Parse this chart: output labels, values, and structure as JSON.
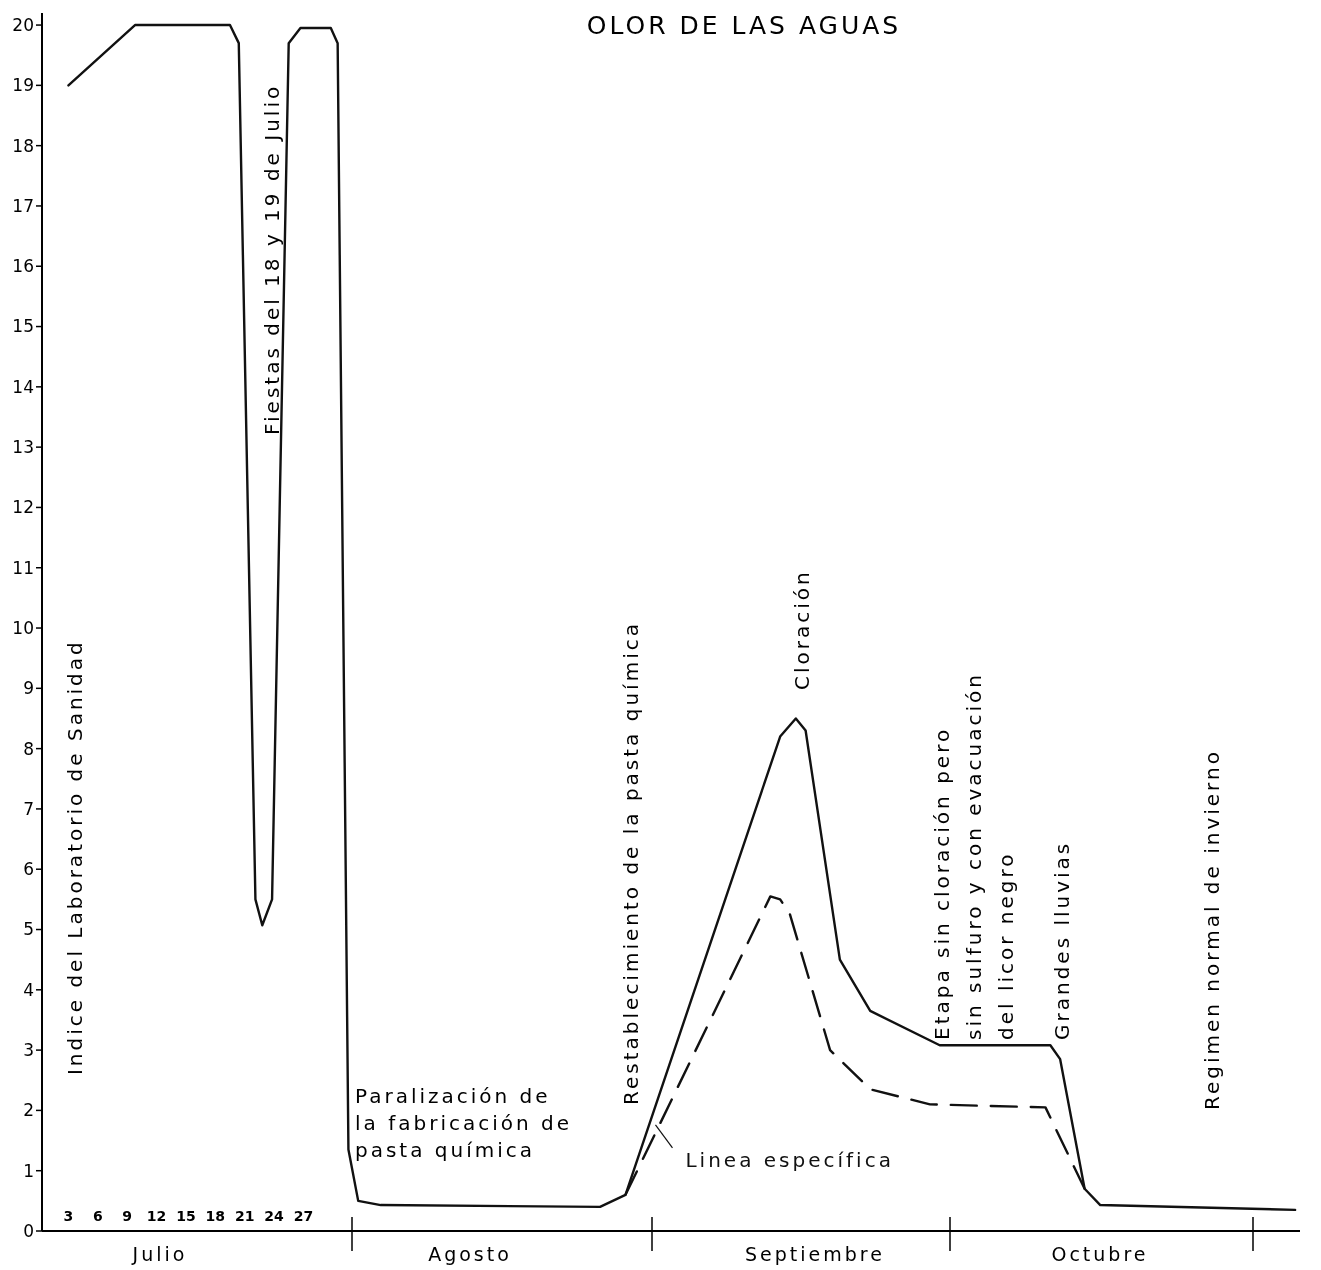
{
  "chart_data": {
    "type": "line",
    "title": "OLOR DE LAS AGUAS",
    "ylabel": "Indice del Laboratorio de Sanidad",
    "xlim": [
      0.3,
      128.8
    ],
    "ylim": [
      0,
      20.2
    ],
    "xticks": [
      3,
      6,
      9,
      12,
      15,
      18,
      21,
      24,
      27
    ],
    "yticks": [
      0,
      1,
      2,
      3,
      4,
      5,
      6,
      7,
      8,
      9,
      10,
      11,
      12,
      13,
      14,
      15,
      16,
      17,
      18,
      19,
      20
    ],
    "series": [
      {
        "color": "#111111",
        "line_style": "solid",
        "x": [
          3,
          9.8,
          19.5,
          20.4,
          22.1,
          22.8,
          23.8,
          25.5,
          26.7,
          29.8,
          30.5,
          31.6,
          32.6,
          34.9,
          57.3,
          59.9,
          75.7,
          77.3,
          78.3,
          81.8,
          84.9,
          92,
          103.3,
          104.3,
          106.8,
          108.4,
          128.3
        ],
        "values": [
          19,
          20,
          20,
          19.7,
          5.5,
          5.07,
          5.5,
          19.7,
          19.95,
          19.95,
          19.7,
          1.35,
          0.5,
          0.43,
          0.4,
          0.6,
          8.2,
          8.5,
          8.3,
          4.5,
          3.65,
          3.08,
          3.08,
          2.85,
          0.7,
          0.43,
          0.35
        ]
      },
      {
        "name": "Linea específica",
        "color": "#111111",
        "line_style": "dashed",
        "x": [
          59.9,
          74.7,
          75.7,
          76.7,
          80.8,
          84.9,
          91,
          102.8,
          106.8
        ],
        "values": [
          0.6,
          5.55,
          5.5,
          5.25,
          3,
          2.35,
          2.1,
          2.05,
          0.7
        ]
      }
    ],
    "annotations": [
      "Fiestas del  18 y 19 de Julio",
      "Paralización de\nla fabricación de\npasta química",
      "Restablecimiento de la pasta química",
      "Cloración",
      "Etapa sin cloración  pero\nsin sulfuro y con  evacuación\ndel  licor negro",
      "Grandes lluvias",
      "Regimen  normal de invierno",
      "Julio",
      "Agosto",
      "Septiembre",
      "Octubre"
    ]
  }
}
